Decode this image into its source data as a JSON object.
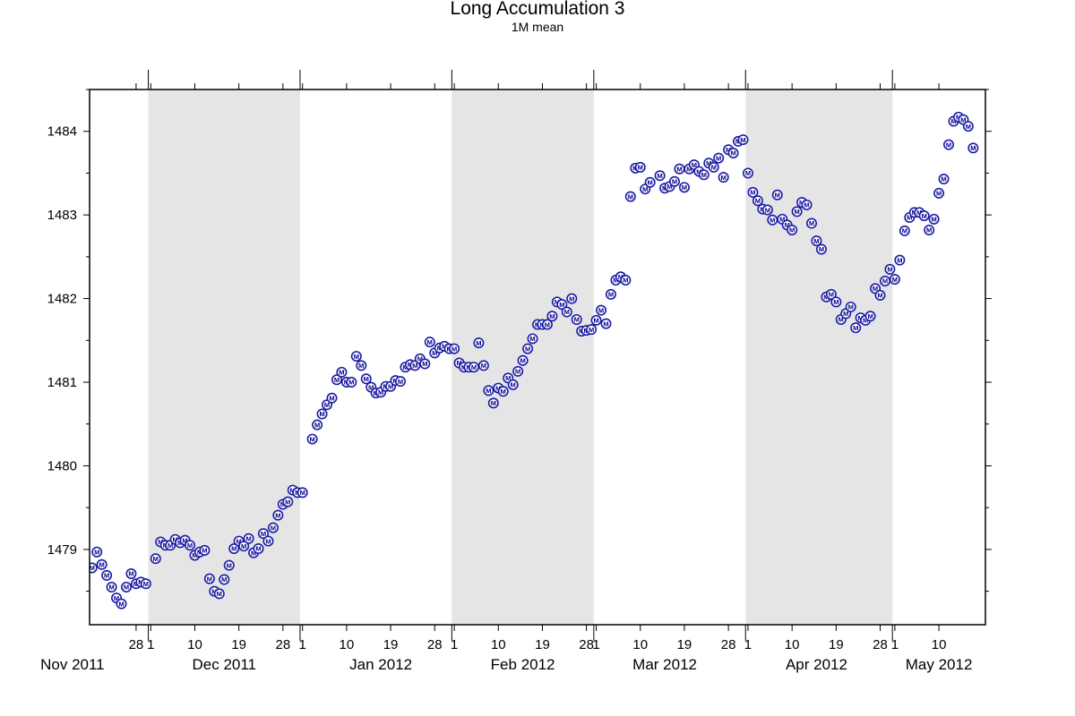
{
  "chart_data": {
    "type": "scatter",
    "title": "Long Accumulation 3",
    "subtitle": "1M mean",
    "xlabel": "",
    "ylabel": "",
    "marker_symbol": "M",
    "marker_color": "#1a1aa8",
    "shade_color": "#e5e5e5",
    "xlim": [
      "2011-11-19",
      "2012-05-19"
    ],
    "ylim": [
      1478.1,
      1484.5
    ],
    "y_ticks": [
      1479,
      1480,
      1481,
      1482,
      1483,
      1484
    ],
    "y_tick_labels": [
      "1479",
      "1480",
      "1481",
      "1482",
      "1483",
      "1484"
    ],
    "x_ticks": [
      {
        "date": "2011-11-28",
        "label": "28"
      },
      {
        "date": "2011-12-01",
        "label": "1"
      },
      {
        "date": "2011-12-10",
        "label": "10"
      },
      {
        "date": "2011-12-19",
        "label": "19"
      },
      {
        "date": "2011-12-28",
        "label": "28"
      },
      {
        "date": "2012-01-01",
        "label": "1"
      },
      {
        "date": "2012-01-10",
        "label": "10"
      },
      {
        "date": "2012-01-19",
        "label": "19"
      },
      {
        "date": "2012-01-28",
        "label": "28"
      },
      {
        "date": "2012-02-01",
        "label": "1"
      },
      {
        "date": "2012-02-10",
        "label": "10"
      },
      {
        "date": "2012-02-19",
        "label": "19"
      },
      {
        "date": "2012-02-28",
        "label": "28"
      },
      {
        "date": "2012-03-01",
        "label": "1"
      },
      {
        "date": "2012-03-10",
        "label": "10"
      },
      {
        "date": "2012-03-19",
        "label": "19"
      },
      {
        "date": "2012-03-28",
        "label": "28"
      },
      {
        "date": "2012-04-01",
        "label": "1"
      },
      {
        "date": "2012-04-10",
        "label": "10"
      },
      {
        "date": "2012-04-19",
        "label": "19"
      },
      {
        "date": "2012-04-28",
        "label": "28"
      },
      {
        "date": "2012-05-01",
        "label": "1"
      },
      {
        "date": "2012-05-10",
        "label": "10"
      }
    ],
    "month_labels": [
      {
        "date": "2011-11-15",
        "label": "Nov 2011"
      },
      {
        "date": "2011-12-16",
        "label": "Dec 2011"
      },
      {
        "date": "2012-01-17",
        "label": "Jan 2012"
      },
      {
        "date": "2012-02-15",
        "label": "Feb 2012"
      },
      {
        "date": "2012-03-15",
        "label": "Mar 2012"
      },
      {
        "date": "2012-04-15",
        "label": "Apr 2012"
      },
      {
        "date": "2012-05-10",
        "label": "May 2012"
      }
    ],
    "month_boundaries": [
      "2011-12-01",
      "2012-01-01",
      "2012-02-01",
      "2012-03-01",
      "2012-04-01",
      "2012-05-01"
    ],
    "shaded_periods": [
      [
        "2011-12-01",
        "2012-01-01"
      ],
      [
        "2012-02-01",
        "2012-03-01"
      ],
      [
        "2012-04-01",
        "2012-05-01"
      ]
    ],
    "series": [
      {
        "points": [
          [
            "2011-11-19",
            1478.78
          ],
          [
            "2011-11-20",
            1478.97
          ],
          [
            "2011-11-21",
            1478.82
          ],
          [
            "2011-11-22",
            1478.69
          ],
          [
            "2011-11-23",
            1478.55
          ],
          [
            "2011-11-24",
            1478.42
          ],
          [
            "2011-11-25",
            1478.35
          ],
          [
            "2011-11-26",
            1478.55
          ],
          [
            "2011-11-27",
            1478.71
          ],
          [
            "2011-11-28",
            1478.59
          ],
          [
            "2011-11-29",
            1478.61
          ],
          [
            "2011-11-30",
            1478.59
          ],
          [
            "2011-12-02",
            1478.89
          ],
          [
            "2011-12-03",
            1479.09
          ],
          [
            "2011-12-04",
            1479.05
          ],
          [
            "2011-12-05",
            1479.05
          ],
          [
            "2011-12-06",
            1479.12
          ],
          [
            "2011-12-07",
            1479.08
          ],
          [
            "2011-12-08",
            1479.11
          ],
          [
            "2011-12-09",
            1479.05
          ],
          [
            "2011-12-10",
            1478.93
          ],
          [
            "2011-12-11",
            1478.97
          ],
          [
            "2011-12-12",
            1478.99
          ],
          [
            "2011-12-13",
            1478.65
          ],
          [
            "2011-12-14",
            1478.5
          ],
          [
            "2011-12-15",
            1478.47
          ],
          [
            "2011-12-16",
            1478.64
          ],
          [
            "2011-12-17",
            1478.81
          ],
          [
            "2011-12-18",
            1479.01
          ],
          [
            "2011-12-19",
            1479.1
          ],
          [
            "2011-12-20",
            1479.04
          ],
          [
            "2011-12-21",
            1479.13
          ],
          [
            "2011-12-22",
            1478.96
          ],
          [
            "2011-12-23",
            1479.01
          ],
          [
            "2011-12-24",
            1479.19
          ],
          [
            "2011-12-25",
            1479.1
          ],
          [
            "2011-12-26",
            1479.26
          ],
          [
            "2011-12-27",
            1479.41
          ],
          [
            "2011-12-28",
            1479.54
          ],
          [
            "2011-12-29",
            1479.57
          ],
          [
            "2011-12-30",
            1479.71
          ],
          [
            "2011-12-31",
            1479.68
          ],
          [
            "2012-01-01",
            1479.68
          ],
          [
            "2012-01-03",
            1480.32
          ],
          [
            "2012-01-04",
            1480.49
          ],
          [
            "2012-01-05",
            1480.62
          ],
          [
            "2012-01-06",
            1480.73
          ],
          [
            "2012-01-07",
            1480.81
          ],
          [
            "2012-01-08",
            1481.03
          ],
          [
            "2012-01-09",
            1481.12
          ],
          [
            "2012-01-10",
            1481.0
          ],
          [
            "2012-01-11",
            1481.0
          ],
          [
            "2012-01-12",
            1481.31
          ],
          [
            "2012-01-13",
            1481.2
          ],
          [
            "2012-01-14",
            1481.04
          ],
          [
            "2012-01-15",
            1480.94
          ],
          [
            "2012-01-16",
            1480.87
          ],
          [
            "2012-01-17",
            1480.88
          ],
          [
            "2012-01-18",
            1480.95
          ],
          [
            "2012-01-19",
            1480.95
          ],
          [
            "2012-01-20",
            1481.02
          ],
          [
            "2012-01-21",
            1481.01
          ],
          [
            "2012-01-22",
            1481.18
          ],
          [
            "2012-01-23",
            1481.21
          ],
          [
            "2012-01-24",
            1481.2
          ],
          [
            "2012-01-25",
            1481.28
          ],
          [
            "2012-01-26",
            1481.22
          ],
          [
            "2012-01-27",
            1481.48
          ],
          [
            "2012-01-28",
            1481.35
          ],
          [
            "2012-01-29",
            1481.41
          ],
          [
            "2012-01-30",
            1481.43
          ],
          [
            "2012-01-31",
            1481.4
          ],
          [
            "2012-02-01",
            1481.4
          ],
          [
            "2012-02-02",
            1481.23
          ],
          [
            "2012-02-03",
            1481.18
          ],
          [
            "2012-02-04",
            1481.18
          ],
          [
            "2012-02-05",
            1481.18
          ],
          [
            "2012-02-06",
            1481.47
          ],
          [
            "2012-02-07",
            1481.2
          ],
          [
            "2012-02-08",
            1480.9
          ],
          [
            "2012-02-09",
            1480.75
          ],
          [
            "2012-02-10",
            1480.93
          ],
          [
            "2012-02-11",
            1480.89
          ],
          [
            "2012-02-12",
            1481.05
          ],
          [
            "2012-02-13",
            1480.97
          ],
          [
            "2012-02-14",
            1481.13
          ],
          [
            "2012-02-15",
            1481.26
          ],
          [
            "2012-02-16",
            1481.4
          ],
          [
            "2012-02-17",
            1481.52
          ],
          [
            "2012-02-18",
            1481.69
          ],
          [
            "2012-02-19",
            1481.69
          ],
          [
            "2012-02-20",
            1481.69
          ],
          [
            "2012-02-21",
            1481.79
          ],
          [
            "2012-02-22",
            1481.96
          ],
          [
            "2012-02-23",
            1481.93
          ],
          [
            "2012-02-24",
            1481.84
          ],
          [
            "2012-02-25",
            1482.0
          ],
          [
            "2012-02-26",
            1481.75
          ],
          [
            "2012-02-27",
            1481.61
          ],
          [
            "2012-02-28",
            1481.62
          ],
          [
            "2012-02-29",
            1481.63
          ],
          [
            "2012-03-01",
            1481.74
          ],
          [
            "2012-03-02",
            1481.86
          ],
          [
            "2012-03-03",
            1481.7
          ],
          [
            "2012-03-04",
            1482.05
          ],
          [
            "2012-03-05",
            1482.22
          ],
          [
            "2012-03-06",
            1482.26
          ],
          [
            "2012-03-07",
            1482.22
          ],
          [
            "2012-03-08",
            1483.22
          ],
          [
            "2012-03-09",
            1483.56
          ],
          [
            "2012-03-10",
            1483.57
          ],
          [
            "2012-03-11",
            1483.31
          ],
          [
            "2012-03-12",
            1483.39
          ],
          [
            "2012-03-14",
            1483.47
          ],
          [
            "2012-03-15",
            1483.32
          ],
          [
            "2012-03-16",
            1483.34
          ],
          [
            "2012-03-17",
            1483.4
          ],
          [
            "2012-03-18",
            1483.55
          ],
          [
            "2012-03-19",
            1483.33
          ],
          [
            "2012-03-20",
            1483.55
          ],
          [
            "2012-03-21",
            1483.6
          ],
          [
            "2012-03-22",
            1483.52
          ],
          [
            "2012-03-23",
            1483.48
          ],
          [
            "2012-03-24",
            1483.62
          ],
          [
            "2012-03-25",
            1483.57
          ],
          [
            "2012-03-26",
            1483.68
          ],
          [
            "2012-03-27",
            1483.45
          ],
          [
            "2012-03-28",
            1483.78
          ],
          [
            "2012-03-29",
            1483.74
          ],
          [
            "2012-03-30",
            1483.88
          ],
          [
            "2012-03-31",
            1483.9
          ],
          [
            "2012-04-01",
            1483.5
          ],
          [
            "2012-04-02",
            1483.27
          ],
          [
            "2012-04-03",
            1483.17
          ],
          [
            "2012-04-04",
            1483.07
          ],
          [
            "2012-04-05",
            1483.06
          ],
          [
            "2012-04-06",
            1482.94
          ],
          [
            "2012-04-07",
            1483.24
          ],
          [
            "2012-04-08",
            1482.95
          ],
          [
            "2012-04-09",
            1482.88
          ],
          [
            "2012-04-10",
            1482.82
          ],
          [
            "2012-04-11",
            1483.04
          ],
          [
            "2012-04-12",
            1483.15
          ],
          [
            "2012-04-13",
            1483.12
          ],
          [
            "2012-04-14",
            1482.9
          ],
          [
            "2012-04-15",
            1482.69
          ],
          [
            "2012-04-16",
            1482.59
          ],
          [
            "2012-04-17",
            1482.02
          ],
          [
            "2012-04-18",
            1482.05
          ],
          [
            "2012-04-19",
            1481.96
          ],
          [
            "2012-04-20",
            1481.75
          ],
          [
            "2012-04-21",
            1481.82
          ],
          [
            "2012-04-22",
            1481.9
          ],
          [
            "2012-04-23",
            1481.65
          ],
          [
            "2012-04-24",
            1481.77
          ],
          [
            "2012-04-25",
            1481.74
          ],
          [
            "2012-04-26",
            1481.79
          ],
          [
            "2012-04-27",
            1482.12
          ],
          [
            "2012-04-28",
            1482.04
          ],
          [
            "2012-04-29",
            1482.21
          ],
          [
            "2012-04-30",
            1482.35
          ],
          [
            "2012-05-01",
            1482.23
          ],
          [
            "2012-05-02",
            1482.46
          ],
          [
            "2012-05-03",
            1482.81
          ],
          [
            "2012-05-04",
            1482.97
          ],
          [
            "2012-05-05",
            1483.03
          ],
          [
            "2012-05-06",
            1483.03
          ],
          [
            "2012-05-07",
            1482.99
          ],
          [
            "2012-05-08",
            1482.82
          ],
          [
            "2012-05-09",
            1482.95
          ],
          [
            "2012-05-10",
            1483.26
          ],
          [
            "2012-05-11",
            1483.43
          ],
          [
            "2012-05-12",
            1483.84
          ],
          [
            "2012-05-13",
            1484.12
          ],
          [
            "2012-05-14",
            1484.17
          ],
          [
            "2012-05-15",
            1484.14
          ],
          [
            "2012-05-16",
            1484.06
          ],
          [
            "2012-05-17",
            1483.8
          ]
        ]
      }
    ]
  }
}
